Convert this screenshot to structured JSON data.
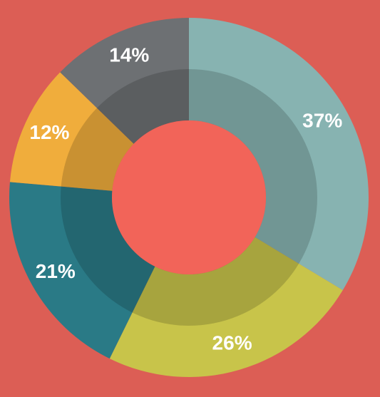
{
  "chart_data": {
    "type": "donut",
    "values": [
      37,
      26,
      21,
      12,
      14
    ],
    "value_labels": [
      "37%",
      "26%",
      "21%",
      "12%",
      "14%"
    ],
    "colors": [
      "#87b3b1",
      "#c8c44a",
      "#2a7a86",
      "#f0ad3c",
      "#6d7073"
    ]
  }
}
